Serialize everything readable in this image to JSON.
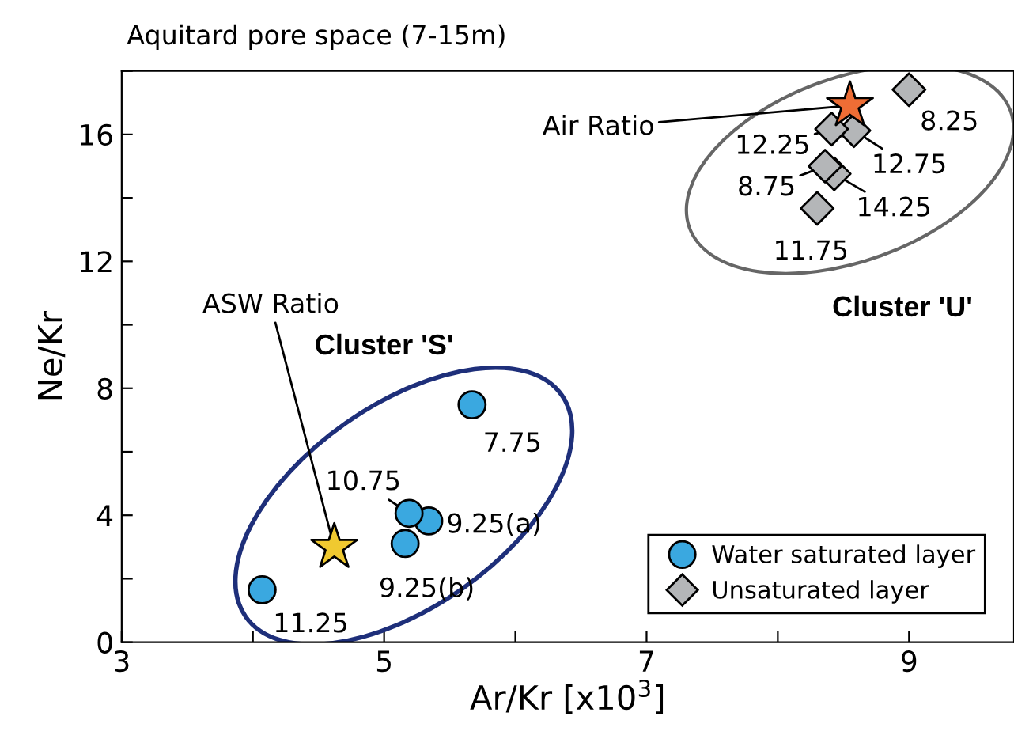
{
  "chart_data": {
    "type": "scatter",
    "title": "Aquitard pore space (7-15m)",
    "xlabel": "Ar/Kr [x10$^{3}$]",
    "ylabel": "Ne/Kr",
    "xlim": [
      3,
      9.8
    ],
    "ylim": [
      0,
      18
    ],
    "xticks": [
      3,
      {
        "value": 4,
        "label": null
      },
      5,
      {
        "value": 6,
        "label": null
      },
      7,
      {
        "value": 8,
        "label": null
      },
      9
    ],
    "yticks": [
      0,
      {
        "value": 2,
        "label": null
      },
      4,
      {
        "value": 6,
        "label": null
      },
      8,
      {
        "value": 10,
        "label": null
      },
      12,
      {
        "value": 14,
        "label": null
      },
      16,
      {
        "value": 18,
        "label": null
      }
    ],
    "grid": false,
    "legend": "bottom right",
    "series": [
      {
        "name": "Water saturated layer",
        "color": "#3aa8e0",
        "marker": "circle",
        "x": [
          5.67,
          5.19,
          5.34,
          5.16,
          4.07
        ],
        "values": [
          7.48,
          4.06,
          3.82,
          3.11,
          1.65
        ]
      },
      {
        "name": "Unsaturated layer",
        "color": "#b4b6b8",
        "marker": "diamond",
        "x": [
          9.0,
          8.41,
          8.58,
          8.36,
          8.43,
          8.3
        ],
        "values": [
          17.41,
          16.17,
          16.12,
          15.0,
          14.76,
          13.67
        ]
      },
      {
        "color": "#f0c930",
        "marker": "star",
        "x": [
          4.62
        ],
        "values": [
          2.99
        ]
      },
      {
        "color": "#ee6d35",
        "marker": "star",
        "x": [
          8.55
        ],
        "values": [
          16.91
        ]
      }
    ],
    "annotations": [
      {
        "text": "7.75",
        "x": 5.67,
        "y": 7.48
      },
      {
        "text": "10.75",
        "x": 5.19,
        "y": 4.06
      },
      {
        "text": "9.25(a)",
        "x": 5.34,
        "y": 3.82
      },
      {
        "text": "9.25(b)",
        "x": 5.16,
        "y": 3.11
      },
      {
        "text": "11.25",
        "x": 4.07,
        "y": 1.65
      },
      {
        "text": "8.25",
        "x": 9.0,
        "y": 17.41
      },
      {
        "text": "12.25",
        "x": 8.41,
        "y": 16.17
      },
      {
        "text": "12.75",
        "x": 8.58,
        "y": 16.12
      },
      {
        "text": "8.75",
        "x": 8.36,
        "y": 15.0
      },
      {
        "text": "14.25",
        "x": 8.43,
        "y": 14.76
      },
      {
        "text": "11.75",
        "x": 8.3,
        "y": 13.67
      },
      {
        "text": "ASW Ratio",
        "x": 4.62,
        "y": 2.99
      },
      {
        "text": "Air Ratio",
        "x": 8.55,
        "y": 16.91
      },
      "Cluster 'S'",
      "Cluster 'U'"
    ]
  }
}
